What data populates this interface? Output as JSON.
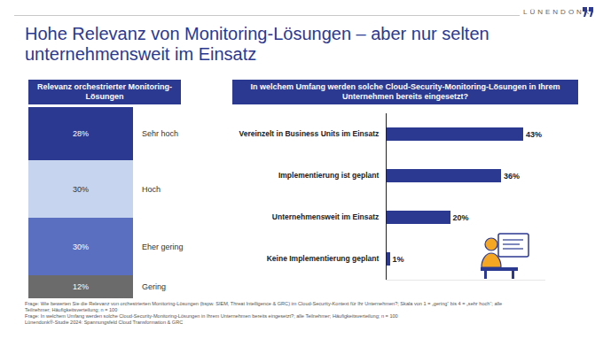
{
  "page": {
    "title_lines": [
      "Hohe Relevanz von Monitoring-Lösungen – aber nur selten",
      "unternehmensweit im Einsatz"
    ],
    "logo": "LÜNENDONK",
    "footnotes": [
      "Frage: Wie bewerten Sie die Relevanz von orchestrierten Monitoring-Lösungen (bspw. SIEM, Threat Intelligence & GRC) im Cloud-Security-Kontext für Ihr Unternehmen?; Skala von 1 = „gering“ bis 4 = „sehr hoch“; alle Teilnehmer; Häufigkeitsverteilung; n = 100",
      "Frage: In welchem Umfang werden solche Cloud-Security-Monitoring-Lösungen in Ihrem Unternehmen bereits eingesetzt?; alle Teilnehmer; Häufigkeitsverteilung; n = 100",
      "Lünendonk®-Studie 2024: Spannungsfeld Cloud Transformation & GRC"
    ]
  },
  "chart_data": [
    {
      "type": "bar",
      "title": "Relevanz orchestrierter Monitoring-Lösungen",
      "stacked": true,
      "data_labels": true,
      "tick_labels": false,
      "grid": false,
      "categories": [
        null
      ],
      "ylim": [
        0,
        100
      ],
      "series": [
        {
          "name": "Sehr hoch",
          "color": "#2b3990",
          "values": [
            28
          ],
          "value_labels": [
            "28%"
          ]
        },
        {
          "name": "Hoch",
          "color": "#c6d4f0",
          "values": [
            30
          ],
          "value_labels": [
            "30%"
          ]
        },
        {
          "name": "Eher gering",
          "color": "#5a6fc0",
          "values": [
            30
          ],
          "value_labels": [
            "30%"
          ]
        },
        {
          "name": "Gering",
          "color": "#6b6b6b",
          "values": [
            12
          ],
          "value_labels": [
            "12%"
          ]
        }
      ]
    },
    {
      "type": "bar",
      "title": "In welchem Umfang werden solche Cloud-Security-Monitoring-Lösungen in Ihrem Unternehmen bereits eingesetzt?",
      "orientation": "horizontal",
      "data_labels": true,
      "tick_labels": "y",
      "grid": false,
      "categories": [
        "Vereinzelt in Business Units im Einsatz",
        "Implementierung ist geplant",
        "Unternehmensweit im Einsatz",
        "Keine Implementierung geplant"
      ],
      "values": [
        43,
        36,
        20,
        1
      ],
      "value_labels": [
        "43%",
        "36%",
        "20%",
        "1%"
      ],
      "color": "#2b3990",
      "xlim": [
        0,
        50
      ]
    }
  ]
}
